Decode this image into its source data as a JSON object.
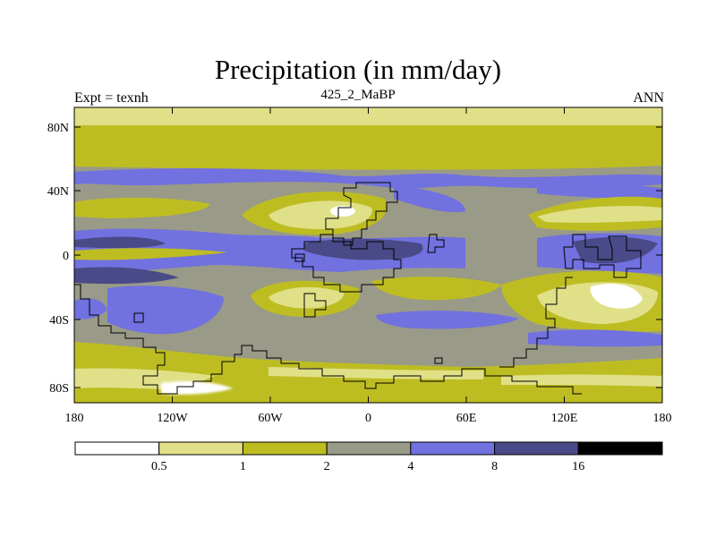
{
  "title": "Precipitation (in mm/day)",
  "left_string": "Expt = texnh",
  "center_string": "425_2_MaBP",
  "right_string": "ANN",
  "lat_ticks": [
    "80N",
    "40N",
    "0",
    "40S",
    "80S"
  ],
  "lon_ticks": [
    "180",
    "120W",
    "60W",
    "0",
    "60E",
    "120E",
    "180"
  ],
  "colorbar": {
    "labels": [
      "0.5",
      "1",
      "2",
      "4",
      "8",
      "16"
    ],
    "colors": [
      "#ffffff",
      "#e0e088",
      "#bdbd22",
      "#9a9a88",
      "#7171e0",
      "#4a4a88",
      "#000000"
    ]
  }
}
